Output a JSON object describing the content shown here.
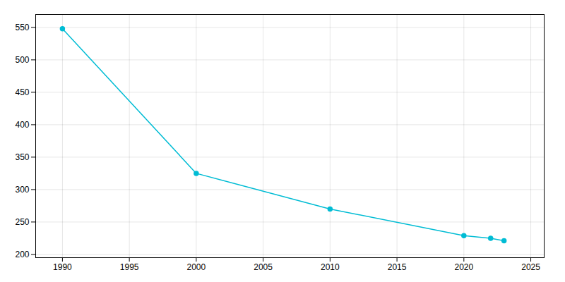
{
  "chart_data": {
    "type": "line",
    "x": [
      1990,
      2000,
      2010,
      2020,
      2022,
      2023
    ],
    "values": [
      548,
      325,
      270,
      229,
      225,
      221
    ],
    "color": "#00bcd4",
    "marker": "circle",
    "xlim": [
      1988,
      2026
    ],
    "ylim": [
      195,
      570
    ],
    "xticks": [
      1990,
      1995,
      2000,
      2005,
      2010,
      2015,
      2020,
      2025
    ],
    "yticks": [
      200,
      250,
      300,
      350,
      400,
      450,
      500,
      550
    ],
    "grid": true
  }
}
